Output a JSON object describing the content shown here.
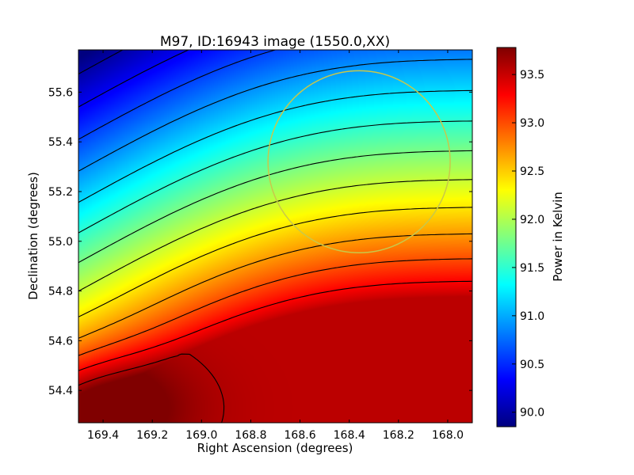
{
  "chart_data": {
    "type": "heatmap",
    "title": "M97, ID:16943 image (1550.0,XX)",
    "xlabel": "Right Ascension (degrees)",
    "ylabel": "Declination (degrees)",
    "colorbar_label": "Power in Kelvin",
    "colormap": "jet",
    "xlim": [
      169.5,
      167.9
    ],
    "ylim": [
      54.27,
      55.77
    ],
    "clim": [
      89.85,
      93.78
    ],
    "x_ticks": [
      169.4,
      169.2,
      169.0,
      168.8,
      168.6,
      168.4,
      168.2,
      168.0
    ],
    "x_tick_labels": [
      "169.4",
      "169.2",
      "169.0",
      "168.8",
      "168.6",
      "168.4",
      "168.2",
      "168.0"
    ],
    "y_ticks": [
      54.4,
      54.6,
      54.8,
      55.0,
      55.2,
      55.4,
      55.6
    ],
    "y_tick_labels": [
      "54.4",
      "54.6",
      "54.8",
      "55.0",
      "55.2",
      "55.4",
      "55.6"
    ],
    "colorbar_ticks": [
      90.0,
      90.5,
      91.0,
      91.5,
      92.0,
      92.5,
      93.0,
      93.5
    ],
    "colorbar_tick_labels": [
      "90.0",
      "90.5",
      "91.0",
      "91.5",
      "92.0",
      "92.5",
      "93.0",
      "93.5"
    ],
    "contour_color": "#000000",
    "source_circle": {
      "ra": 168.36,
      "dec": 55.32,
      "radius_deg": 0.37,
      "color": "#c8c84a"
    }
  }
}
